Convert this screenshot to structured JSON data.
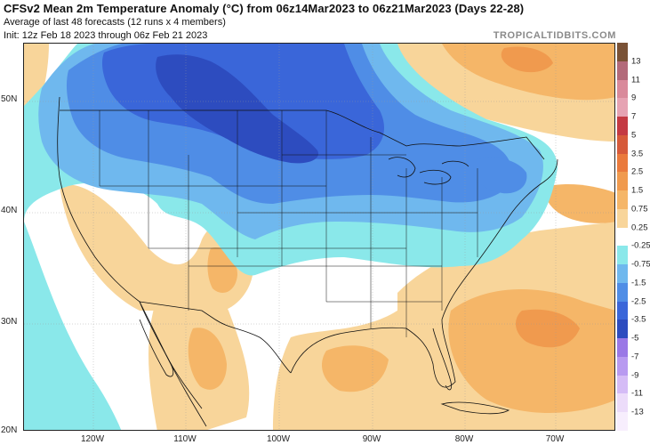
{
  "title": "CFSv2 Mean 2m Temperature Anomaly (°C) from 06z14Mar2023 to 06z21Mar2023 (Days 22-28)",
  "subtitle1": "Average of last 48 forecasts (12 runs x 4 members)",
  "subtitle2": "Init: 12z Feb 18 2023 through 06z Feb 21 2023",
  "brand": "TROPICALTIDBITS.COM",
  "lat_labels": [
    "50N",
    "40N",
    "30N",
    "20N"
  ],
  "lon_labels": [
    "120W",
    "110W",
    "100W",
    "90W",
    "80W",
    "70W"
  ],
  "colorbar": {
    "labels": [
      "13",
      "11",
      "9",
      "7",
      "5",
      "3.5",
      "2.5",
      "1.5",
      "0.75",
      "0.25",
      "-0.25",
      "-0.75",
      "-1.5",
      "-2.5",
      "-3.5",
      "-5",
      "-7",
      "-9",
      "-11",
      "-13"
    ],
    "colors": [
      "#7a5236",
      "#b36a7a",
      "#d98a9b",
      "#e6a3b3",
      "#c43a43",
      "#d65a3a",
      "#ea7a3c",
      "#f09a4e",
      "#f5b668",
      "#f8d59a",
      "#ffffff",
      "#8ae8ea",
      "#6fb8ee",
      "#4f8de6",
      "#3a66d9",
      "#2d4cbf",
      "#9a78e6",
      "#b89af0",
      "#d5bcf6",
      "#ecdcfa",
      "#f7eefd"
    ]
  }
}
